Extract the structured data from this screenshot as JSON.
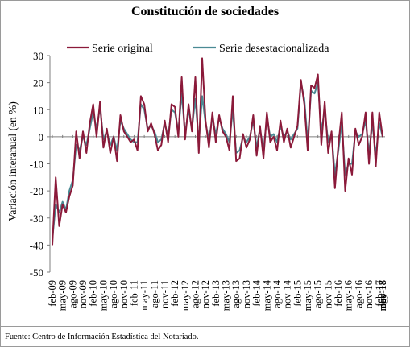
{
  "title": "Constitución de sociedades",
  "footer": "Fuente: Centro de Información Estadística del Notariado.",
  "chart_data": {
    "type": "line",
    "title": "Constitución de sociedades",
    "ylabel": "Variación interanual (en %)",
    "xlabel": "",
    "ylim": [
      -50,
      30
    ],
    "yticks": [
      -50,
      -40,
      -30,
      -20,
      -10,
      0,
      10,
      20,
      30
    ],
    "grid": false,
    "legend_position": "top",
    "x_tick_labels": [
      "feb-09",
      "may-09",
      "ago-09",
      "nov-09",
      "feb-10",
      "may-10",
      "ago-10",
      "nov-10",
      "feb-11",
      "may-11",
      "ago-11",
      "nov-11",
      "feb-12",
      "may-12",
      "ago-12",
      "nov-12",
      "feb-13",
      "may-13",
      "ago-13",
      "nov-13",
      "feb-14",
      "may-14",
      "ago-14",
      "nov-14",
      "feb-15",
      "may-15",
      "ago-15",
      "nov-15",
      "feb-16",
      "may-16",
      "ago-16",
      "nov-16",
      "feb-17",
      "may-17",
      "ago-17",
      "nov-17",
      "feb-18",
      "may-18"
    ],
    "series": [
      {
        "name": "Serie original",
        "color": "#8b1a3a",
        "values": [
          -40,
          -15,
          -33,
          -25,
          -28,
          -22,
          -18,
          2,
          -8,
          2,
          -6,
          5,
          12,
          0,
          13,
          -4,
          3,
          -6,
          0,
          -9,
          8,
          2,
          0,
          -2,
          -1,
          -5,
          15,
          12,
          2,
          5,
          1,
          -5,
          -3,
          6,
          -2,
          12,
          11,
          0,
          22,
          -1,
          12,
          2,
          22,
          -6,
          29,
          6,
          -4,
          9,
          -2,
          8,
          2,
          0,
          -5,
          15,
          -9,
          -8,
          1,
          -4,
          -1,
          8,
          -7,
          4,
          -8,
          9,
          -2,
          0,
          -5,
          6,
          -2,
          3,
          -4,
          0,
          4,
          21,
          12,
          -5,
          19,
          18,
          23,
          -3,
          13,
          -6,
          2,
          -19,
          -3,
          9,
          -20,
          -8,
          -14,
          3,
          -3,
          0,
          9,
          -10,
          9,
          -11,
          9,
          0
        ],
        "label_ticks": true
      },
      {
        "name": "Serie desestacionalizada",
        "color": "#4a8a94",
        "values": [
          -38,
          -25,
          -28,
          -24,
          -27,
          -20,
          -16,
          -3,
          -5,
          0,
          -3,
          3,
          9,
          3,
          11,
          -1,
          2,
          -3,
          0,
          -5,
          6,
          3,
          1,
          -1,
          -2,
          -2,
          12,
          10,
          3,
          4,
          2,
          -2,
          -1,
          5,
          0,
          10,
          9,
          2,
          16,
          1,
          10,
          3,
          14,
          -2,
          15,
          5,
          -1,
          7,
          1,
          7,
          3,
          1,
          -2,
          10,
          -6,
          -5,
          0,
          -2,
          0,
          6,
          -4,
          3,
          -5,
          7,
          0,
          1,
          -2,
          4,
          0,
          2,
          -1,
          1,
          3,
          20,
          14,
          -2,
          17,
          16,
          20,
          2,
          10,
          -2,
          1,
          -14,
          -5,
          5,
          -14,
          -10,
          -10,
          2,
          0,
          1,
          6,
          -6,
          5,
          -7,
          5,
          0
        ]
      }
    ]
  }
}
